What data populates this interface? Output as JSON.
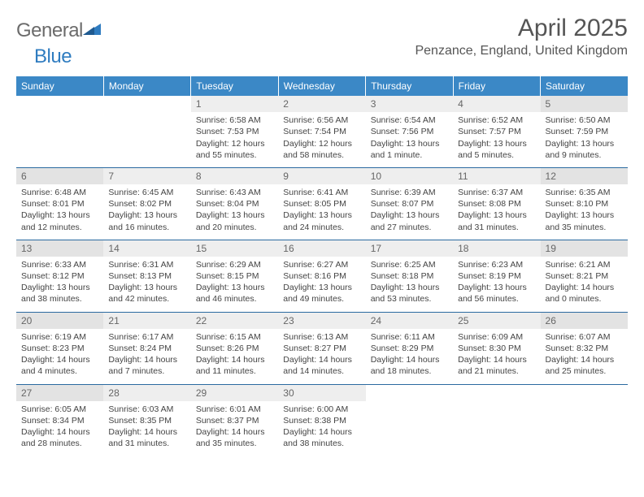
{
  "logo": {
    "text1": "General",
    "text2": "Blue"
  },
  "title": "April 2025",
  "location": "Penzance, England, United Kingdom",
  "colors": {
    "header_bg": "#3b88c6",
    "row_border": "#2a6aa0",
    "daynum_bg": "#eeeeee",
    "daynum_bg_shade": "#e3e3e3",
    "text": "#444444",
    "title_text": "#555555"
  },
  "weekday_headers": [
    "Sunday",
    "Monday",
    "Tuesday",
    "Wednesday",
    "Thursday",
    "Friday",
    "Saturday"
  ],
  "weeks": [
    [
      {
        "blank": true
      },
      {
        "blank": true
      },
      {
        "day": 1,
        "sunrise": "Sunrise: 6:58 AM",
        "sunset": "Sunset: 7:53 PM",
        "daylight": "Daylight: 12 hours and 55 minutes."
      },
      {
        "day": 2,
        "sunrise": "Sunrise: 6:56 AM",
        "sunset": "Sunset: 7:54 PM",
        "daylight": "Daylight: 12 hours and 58 minutes."
      },
      {
        "day": 3,
        "sunrise": "Sunrise: 6:54 AM",
        "sunset": "Sunset: 7:56 PM",
        "daylight": "Daylight: 13 hours and 1 minute."
      },
      {
        "day": 4,
        "sunrise": "Sunrise: 6:52 AM",
        "sunset": "Sunset: 7:57 PM",
        "daylight": "Daylight: 13 hours and 5 minutes."
      },
      {
        "day": 5,
        "sunrise": "Sunrise: 6:50 AM",
        "sunset": "Sunset: 7:59 PM",
        "daylight": "Daylight: 13 hours and 9 minutes.",
        "shade": true
      }
    ],
    [
      {
        "day": 6,
        "sunrise": "Sunrise: 6:48 AM",
        "sunset": "Sunset: 8:01 PM",
        "daylight": "Daylight: 13 hours and 12 minutes.",
        "shade": true
      },
      {
        "day": 7,
        "sunrise": "Sunrise: 6:45 AM",
        "sunset": "Sunset: 8:02 PM",
        "daylight": "Daylight: 13 hours and 16 minutes."
      },
      {
        "day": 8,
        "sunrise": "Sunrise: 6:43 AM",
        "sunset": "Sunset: 8:04 PM",
        "daylight": "Daylight: 13 hours and 20 minutes."
      },
      {
        "day": 9,
        "sunrise": "Sunrise: 6:41 AM",
        "sunset": "Sunset: 8:05 PM",
        "daylight": "Daylight: 13 hours and 24 minutes."
      },
      {
        "day": 10,
        "sunrise": "Sunrise: 6:39 AM",
        "sunset": "Sunset: 8:07 PM",
        "daylight": "Daylight: 13 hours and 27 minutes."
      },
      {
        "day": 11,
        "sunrise": "Sunrise: 6:37 AM",
        "sunset": "Sunset: 8:08 PM",
        "daylight": "Daylight: 13 hours and 31 minutes."
      },
      {
        "day": 12,
        "sunrise": "Sunrise: 6:35 AM",
        "sunset": "Sunset: 8:10 PM",
        "daylight": "Daylight: 13 hours and 35 minutes.",
        "shade": true
      }
    ],
    [
      {
        "day": 13,
        "sunrise": "Sunrise: 6:33 AM",
        "sunset": "Sunset: 8:12 PM",
        "daylight": "Daylight: 13 hours and 38 minutes.",
        "shade": true
      },
      {
        "day": 14,
        "sunrise": "Sunrise: 6:31 AM",
        "sunset": "Sunset: 8:13 PM",
        "daylight": "Daylight: 13 hours and 42 minutes."
      },
      {
        "day": 15,
        "sunrise": "Sunrise: 6:29 AM",
        "sunset": "Sunset: 8:15 PM",
        "daylight": "Daylight: 13 hours and 46 minutes."
      },
      {
        "day": 16,
        "sunrise": "Sunrise: 6:27 AM",
        "sunset": "Sunset: 8:16 PM",
        "daylight": "Daylight: 13 hours and 49 minutes."
      },
      {
        "day": 17,
        "sunrise": "Sunrise: 6:25 AM",
        "sunset": "Sunset: 8:18 PM",
        "daylight": "Daylight: 13 hours and 53 minutes."
      },
      {
        "day": 18,
        "sunrise": "Sunrise: 6:23 AM",
        "sunset": "Sunset: 8:19 PM",
        "daylight": "Daylight: 13 hours and 56 minutes."
      },
      {
        "day": 19,
        "sunrise": "Sunrise: 6:21 AM",
        "sunset": "Sunset: 8:21 PM",
        "daylight": "Daylight: 14 hours and 0 minutes.",
        "shade": true
      }
    ],
    [
      {
        "day": 20,
        "sunrise": "Sunrise: 6:19 AM",
        "sunset": "Sunset: 8:23 PM",
        "daylight": "Daylight: 14 hours and 4 minutes.",
        "shade": true
      },
      {
        "day": 21,
        "sunrise": "Sunrise: 6:17 AM",
        "sunset": "Sunset: 8:24 PM",
        "daylight": "Daylight: 14 hours and 7 minutes."
      },
      {
        "day": 22,
        "sunrise": "Sunrise: 6:15 AM",
        "sunset": "Sunset: 8:26 PM",
        "daylight": "Daylight: 14 hours and 11 minutes."
      },
      {
        "day": 23,
        "sunrise": "Sunrise: 6:13 AM",
        "sunset": "Sunset: 8:27 PM",
        "daylight": "Daylight: 14 hours and 14 minutes."
      },
      {
        "day": 24,
        "sunrise": "Sunrise: 6:11 AM",
        "sunset": "Sunset: 8:29 PM",
        "daylight": "Daylight: 14 hours and 18 minutes."
      },
      {
        "day": 25,
        "sunrise": "Sunrise: 6:09 AM",
        "sunset": "Sunset: 8:30 PM",
        "daylight": "Daylight: 14 hours and 21 minutes."
      },
      {
        "day": 26,
        "sunrise": "Sunrise: 6:07 AM",
        "sunset": "Sunset: 8:32 PM",
        "daylight": "Daylight: 14 hours and 25 minutes.",
        "shade": true
      }
    ],
    [
      {
        "day": 27,
        "sunrise": "Sunrise: 6:05 AM",
        "sunset": "Sunset: 8:34 PM",
        "daylight": "Daylight: 14 hours and 28 minutes.",
        "shade": true
      },
      {
        "day": 28,
        "sunrise": "Sunrise: 6:03 AM",
        "sunset": "Sunset: 8:35 PM",
        "daylight": "Daylight: 14 hours and 31 minutes."
      },
      {
        "day": 29,
        "sunrise": "Sunrise: 6:01 AM",
        "sunset": "Sunset: 8:37 PM",
        "daylight": "Daylight: 14 hours and 35 minutes."
      },
      {
        "day": 30,
        "sunrise": "Sunrise: 6:00 AM",
        "sunset": "Sunset: 8:38 PM",
        "daylight": "Daylight: 14 hours and 38 minutes."
      },
      {
        "blank": true
      },
      {
        "blank": true
      },
      {
        "blank": true
      }
    ]
  ]
}
